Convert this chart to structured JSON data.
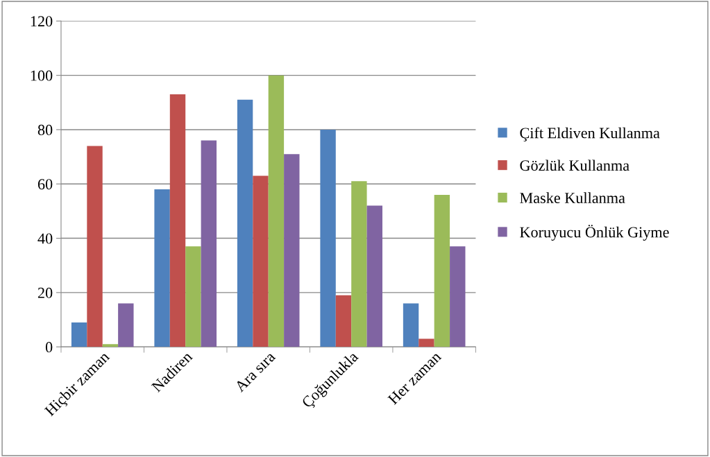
{
  "chart_data": {
    "type": "bar",
    "categories": [
      "Hiçbir zaman",
      "Nadiren",
      "Ara sıra",
      "Çoğunlukla",
      "Her zaman"
    ],
    "series": [
      {
        "name": "Çift Eldiven Kullanma",
        "color": "#4f81bd",
        "values": [
          9,
          58,
          91,
          80,
          16
        ]
      },
      {
        "name": "Gözlük Kullanma",
        "color": "#c0504d",
        "values": [
          74,
          93,
          63,
          19,
          3
        ]
      },
      {
        "name": "Maske Kullanma",
        "color": "#9bbb59",
        "values": [
          1,
          37,
          100,
          61,
          56
        ]
      },
      {
        "name": "Koruyucu Önlük Giyme",
        "color": "#8064a2",
        "values": [
          16,
          76,
          71,
          52,
          37
        ]
      }
    ],
    "ylim": [
      0,
      120
    ],
    "yticks": [
      0,
      20,
      40,
      60,
      80,
      100,
      120
    ],
    "grid": "y",
    "legend": "right"
  }
}
